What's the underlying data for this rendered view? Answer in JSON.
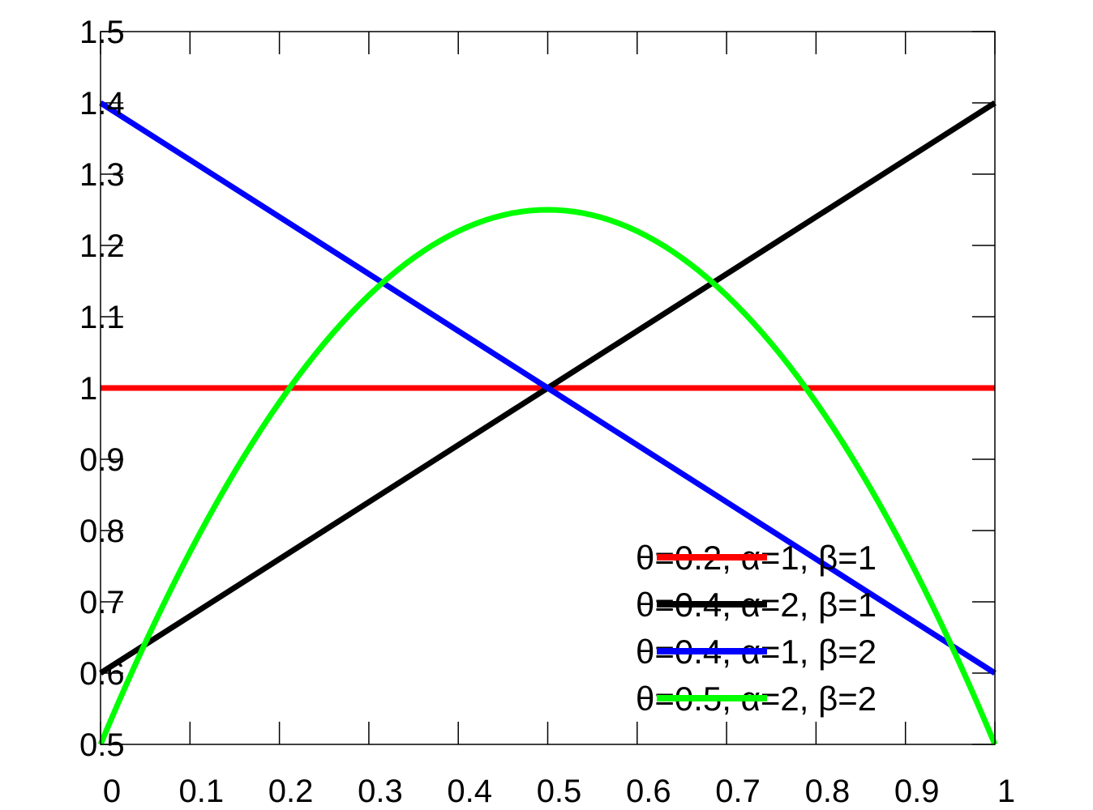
{
  "chart_data": {
    "type": "line",
    "title": "",
    "xlabel": "",
    "ylabel": "",
    "xlim": [
      0,
      1
    ],
    "ylim": [
      0.5,
      1.5
    ],
    "grid": false,
    "legend_position": "bottom-right",
    "x_ticks": [
      "0",
      "0.1",
      "0.2",
      "0.3",
      "0.4",
      "0.5",
      "0.6",
      "0.7",
      "0.8",
      "0.9",
      "1"
    ],
    "y_ticks": [
      "0.5",
      "0.6",
      "0.7",
      "0.8",
      "0.9",
      "1",
      "1.1",
      "1.2",
      "1.3",
      "1.4",
      "1.5"
    ],
    "series": [
      {
        "name": "θ=0.2, α=1, β=1",
        "color": "#ff0000",
        "x": [
          0,
          0.25,
          0.5,
          0.75,
          1
        ],
        "y": [
          1,
          1,
          1,
          1,
          1
        ]
      },
      {
        "name": "θ=0.4, α=2, β=1",
        "color": "#000000",
        "x": [
          0,
          0.25,
          0.5,
          0.75,
          1
        ],
        "y": [
          0.6,
          0.8,
          1.0,
          1.2,
          1.4
        ]
      },
      {
        "name": "θ=0.4, α=1, β=2",
        "color": "#0000ff",
        "x": [
          0,
          0.25,
          0.5,
          0.75,
          1
        ],
        "y": [
          1.4,
          1.2,
          1.0,
          0.8,
          0.6
        ]
      },
      {
        "name": "θ=0.5, α=2, β=2",
        "color": "#00ff00",
        "x": [
          0,
          0.1,
          0.2,
          0.3,
          0.4,
          0.5,
          0.6,
          0.7,
          0.8,
          0.9,
          1
        ],
        "y": [
          0.5,
          0.77,
          0.98,
          1.13,
          1.22,
          1.25,
          1.22,
          1.13,
          0.98,
          0.77,
          0.5
        ]
      }
    ]
  }
}
